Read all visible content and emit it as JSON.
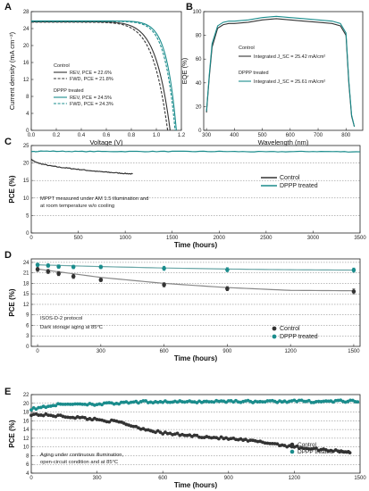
{
  "chart_data": [
    {
      "panel": "A",
      "type": "line",
      "xlabel": "Voltage (V)",
      "ylabel": "Current density (mA cm⁻²)",
      "xlim": [
        0.0,
        1.2
      ],
      "ylim": [
        0,
        28
      ],
      "xticks": [
        "0.0",
        "0.2",
        "0.4",
        "0.6",
        "0.8",
        "1.0",
        "1.2"
      ],
      "yticks": [
        "0",
        "4",
        "8",
        "12",
        "16",
        "20",
        "24",
        "28"
      ],
      "legend_groups": [
        {
          "title": "Control",
          "entries": [
            {
              "label": "REV, PCE = 22.6%",
              "color": "#333333",
              "style": "solid"
            },
            {
              "label": "FWD, PCE = 21.8%",
              "color": "#333333",
              "style": "dashed"
            }
          ]
        },
        {
          "title": "DPPP treated",
          "entries": [
            {
              "label": "REV, PCE = 24.5%",
              "color": "#1a8c8c",
              "style": "solid"
            },
            {
              "label": "FWD, PCE = 24.3%",
              "color": "#1a8c8c",
              "style": "dashed"
            }
          ]
        }
      ],
      "series": [
        {
          "name": "Control REV",
          "color": "#333333",
          "dash": false,
          "jsc": 25.6,
          "voc": 1.11,
          "n": 2.0
        },
        {
          "name": "Control FWD",
          "color": "#333333",
          "dash": true,
          "jsc": 25.5,
          "voc": 1.09,
          "n": 2.1
        },
        {
          "name": "DPPP REV",
          "color": "#1a8c8c",
          "dash": false,
          "jsc": 25.8,
          "voc": 1.16,
          "n": 1.35
        },
        {
          "name": "DPPP FWD",
          "color": "#1a8c8c",
          "dash": true,
          "jsc": 25.7,
          "voc": 1.15,
          "n": 1.4
        }
      ]
    },
    {
      "panel": "B",
      "type": "line",
      "xlabel": "Wavelength (nm)",
      "ylabel": "EQE (%)",
      "xlim": [
        290,
        860
      ],
      "ylim": [
        0,
        100
      ],
      "xticks": [
        "300",
        "400",
        "500",
        "600",
        "700",
        "800"
      ],
      "yticks": [
        "0",
        "20",
        "40",
        "60",
        "80",
        "100"
      ],
      "legend_groups": [
        {
          "title": "Control",
          "entries": [
            {
              "label": "Integrated J_SC = 25.42 mA/cm²",
              "color": "#333333",
              "style": "solid"
            }
          ]
        },
        {
          "title": "DPPP treated",
          "entries": [
            {
              "label": "Integrated J_SC = 25.61 mA/cm²",
              "color": "#1a8c8c",
              "style": "solid"
            }
          ]
        }
      ],
      "series": [
        {
          "name": "Control",
          "color": "#333333",
          "x": [
            300,
            310,
            320,
            340,
            360,
            380,
            400,
            450,
            500,
            550,
            600,
            650,
            700,
            750,
            780,
            800,
            810,
            820,
            830
          ],
          "y": [
            15,
            45,
            70,
            86,
            89,
            90,
            90,
            91,
            93,
            94,
            93,
            92,
            91,
            90,
            88,
            80,
            40,
            12,
            3
          ]
        },
        {
          "name": "DPPP treated",
          "color": "#1a8c8c",
          "x": [
            300,
            310,
            320,
            340,
            360,
            380,
            400,
            450,
            500,
            550,
            600,
            650,
            700,
            750,
            780,
            800,
            810,
            820,
            830
          ],
          "y": [
            16,
            47,
            73,
            88,
            91,
            92,
            92,
            93,
            95,
            96,
            95,
            94,
            93,
            92,
            90,
            82,
            42,
            13,
            3
          ]
        }
      ]
    },
    {
      "panel": "C",
      "type": "line",
      "xlabel": "Time (hours)",
      "ylabel": "PCE (%)",
      "xlim": [
        0,
        3500
      ],
      "ylim": [
        0,
        25
      ],
      "xticks": [
        "0",
        "500",
        "1000",
        "1500",
        "2000",
        "2500",
        "3000",
        "3500"
      ],
      "yticks": [
        "0",
        "5",
        "10",
        "15",
        "20",
        "25"
      ],
      "legend": [
        "Control",
        "DPPP treated"
      ],
      "annotation": [
        "MPPT measured under AM 1.5 illumination and",
        "at room temperature w/o cooling"
      ],
      "series": [
        {
          "name": "Control",
          "color": "#333333",
          "x": [
            0,
            50,
            100,
            200,
            300,
            400,
            500,
            600,
            700,
            800,
            900,
            1000,
            1080
          ],
          "y": [
            21.0,
            20.2,
            19.8,
            19.2,
            18.8,
            18.5,
            18.2,
            17.9,
            17.6,
            17.4,
            17.2,
            17.0,
            16.9
          ]
        },
        {
          "name": "DPPP treated",
          "color": "#1a8c8c",
          "x": [
            0,
            100,
            500,
            1000,
            1500,
            2000,
            2500,
            3000,
            3500
          ],
          "y": [
            23.2,
            23.4,
            23.3,
            23.3,
            23.3,
            23.3,
            23.2,
            23.3,
            23.2
          ]
        }
      ]
    },
    {
      "panel": "D",
      "type": "scatter",
      "xlabel": "Time (hours)",
      "ylabel": "PCE (%)",
      "xlim": [
        -30,
        1530
      ],
      "ylim": [
        0,
        25
      ],
      "xticks": [
        "0",
        "300",
        "600",
        "900",
        "1200",
        "1500"
      ],
      "yticks": [
        "0",
        "3",
        "6",
        "9",
        "12",
        "15",
        "18",
        "21",
        "24"
      ],
      "legend": [
        "Control",
        "DPPP treated"
      ],
      "annotation": [
        "ISOS-D-2 protocol",
        "Dark storage aging at 85°C"
      ],
      "series": [
        {
          "name": "Control",
          "color": "#333333",
          "x": [
            0,
            50,
            100,
            170,
            300,
            600,
            900,
            1500
          ],
          "y": [
            22.0,
            21.4,
            20.8,
            20.0,
            19.0,
            17.6,
            16.5,
            15.7
          ],
          "err": [
            0.6,
            0.6,
            0.6,
            0.6,
            0.5,
            0.6,
            0.6,
            0.7
          ],
          "fit": [
            [
              0,
              22.1
            ],
            [
              300,
              19.7
            ],
            [
              600,
              18.0
            ],
            [
              900,
              16.8
            ],
            [
              1200,
              16.0
            ],
            [
              1500,
              15.9
            ]
          ]
        },
        {
          "name": "DPPP treated",
          "color": "#1a8c8c",
          "x": [
            0,
            50,
            100,
            170,
            300,
            600,
            900,
            1500
          ],
          "y": [
            23.3,
            23.1,
            22.8,
            22.7,
            22.7,
            22.3,
            21.9,
            21.8
          ],
          "err": [
            0.5,
            0.5,
            0.5,
            0.5,
            0.5,
            0.6,
            0.6,
            0.6
          ],
          "fit": [
            [
              0,
              23.3
            ],
            [
              300,
              22.8
            ],
            [
              600,
              22.4
            ],
            [
              900,
              22.1
            ],
            [
              1200,
              21.9
            ],
            [
              1500,
              21.8
            ]
          ]
        }
      ]
    },
    {
      "panel": "E",
      "type": "scatter",
      "xlabel": "Time (hours)",
      "ylabel": "PCE (%)",
      "xlim": [
        0,
        1500
      ],
      "ylim": [
        4,
        22
      ],
      "xticks": [
        "0",
        "300",
        "600",
        "900",
        "1200",
        "1500"
      ],
      "yticks": [
        "4",
        "6",
        "8",
        "10",
        "12",
        "14",
        "16",
        "18",
        "20",
        "22"
      ],
      "legend": [
        "Control",
        "DPPP treated"
      ],
      "annotation": [
        "Aging under continuous illumination,",
        "open-circuit condition and at 85°C"
      ],
      "series": [
        {
          "name": "Control",
          "color": "#333333",
          "trend": [
            [
              0,
              17.5
            ],
            [
              100,
              17.2
            ],
            [
              200,
              16.8
            ],
            [
              300,
              16.3
            ],
            [
              400,
              15.7
            ],
            [
              500,
              14.3
            ],
            [
              600,
              13.2
            ],
            [
              700,
              12.7
            ],
            [
              800,
              12.3
            ],
            [
              900,
              11.9
            ],
            [
              1000,
              11.4
            ],
            [
              1100,
              10.8
            ],
            [
              1200,
              10.0
            ],
            [
              1300,
              9.5
            ],
            [
              1400,
              9.1
            ],
            [
              1460,
              8.8
            ]
          ]
        },
        {
          "name": "DPPP treated",
          "color": "#1a8c8c",
          "trend": [
            [
              0,
              18.6
            ],
            [
              100,
              19.6
            ],
            [
              200,
              19.9
            ],
            [
              300,
              19.8
            ],
            [
              400,
              20.0
            ],
            [
              500,
              20.3
            ],
            [
              600,
              20.4
            ],
            [
              700,
              20.3
            ],
            [
              800,
              20.4
            ],
            [
              900,
              20.5
            ],
            [
              1000,
              20.4
            ],
            [
              1100,
              20.4
            ],
            [
              1200,
              20.5
            ],
            [
              1300,
              20.4
            ],
            [
              1400,
              20.5
            ],
            [
              1500,
              20.4
            ]
          ]
        }
      ]
    }
  ]
}
